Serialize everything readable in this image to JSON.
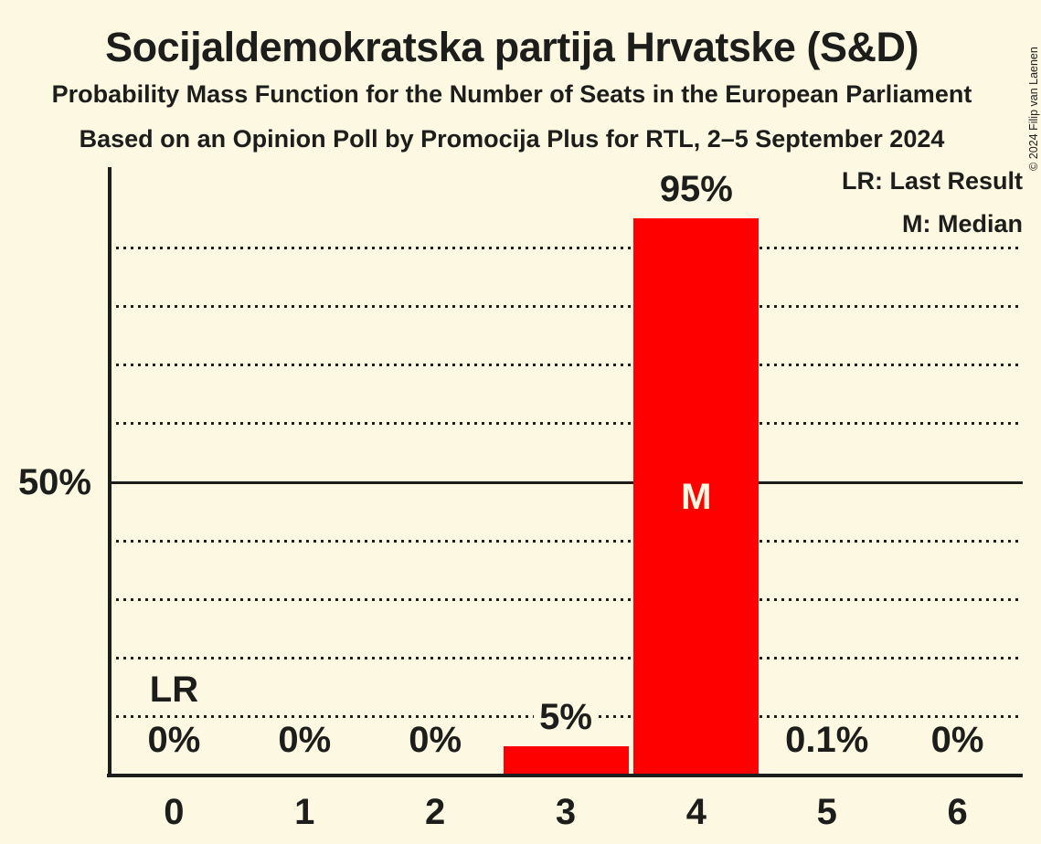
{
  "page": {
    "background_color": "#FDF8E1",
    "text_color": "#1D1D1B"
  },
  "header": {
    "title": "Socijaldemokratska partija Hrvatske (S&D)",
    "subtitle": "Probability Mass Function for the Number of Seats in the European Parliament",
    "source_line": "Based on an Opinion Poll by Promocija Plus for RTL, 2–5 September 2024"
  },
  "copyright": "© 2024 Filip van Laenen",
  "legend": {
    "lr": "LR: Last Result",
    "m": "M: Median"
  },
  "chart_data": {
    "type": "bar",
    "title": "Socijaldemokratska partija Hrvatske (S&D)",
    "xlabel": "",
    "ylabel": "",
    "categories": [
      "0",
      "1",
      "2",
      "3",
      "4",
      "5",
      "6"
    ],
    "values": [
      0,
      0,
      0,
      5,
      95,
      0.1,
      0
    ],
    "bar_labels": [
      "0%",
      "0%",
      "0%",
      "5%",
      "95%",
      "0.1%",
      "0%"
    ],
    "bar_color": "#FF0000",
    "ylim": [
      0,
      100
    ],
    "y_tick": {
      "label": "50%",
      "value": 50
    },
    "gridlines_pct": [
      10,
      20,
      30,
      40,
      50,
      60,
      70,
      80,
      90
    ],
    "solid_gridline_pct": 50,
    "grid_style": "dotted",
    "legend_position": "top-right",
    "median_category": "4",
    "last_result_category": "0",
    "annotations": {
      "median_label": "M",
      "last_result_label": "LR"
    }
  }
}
